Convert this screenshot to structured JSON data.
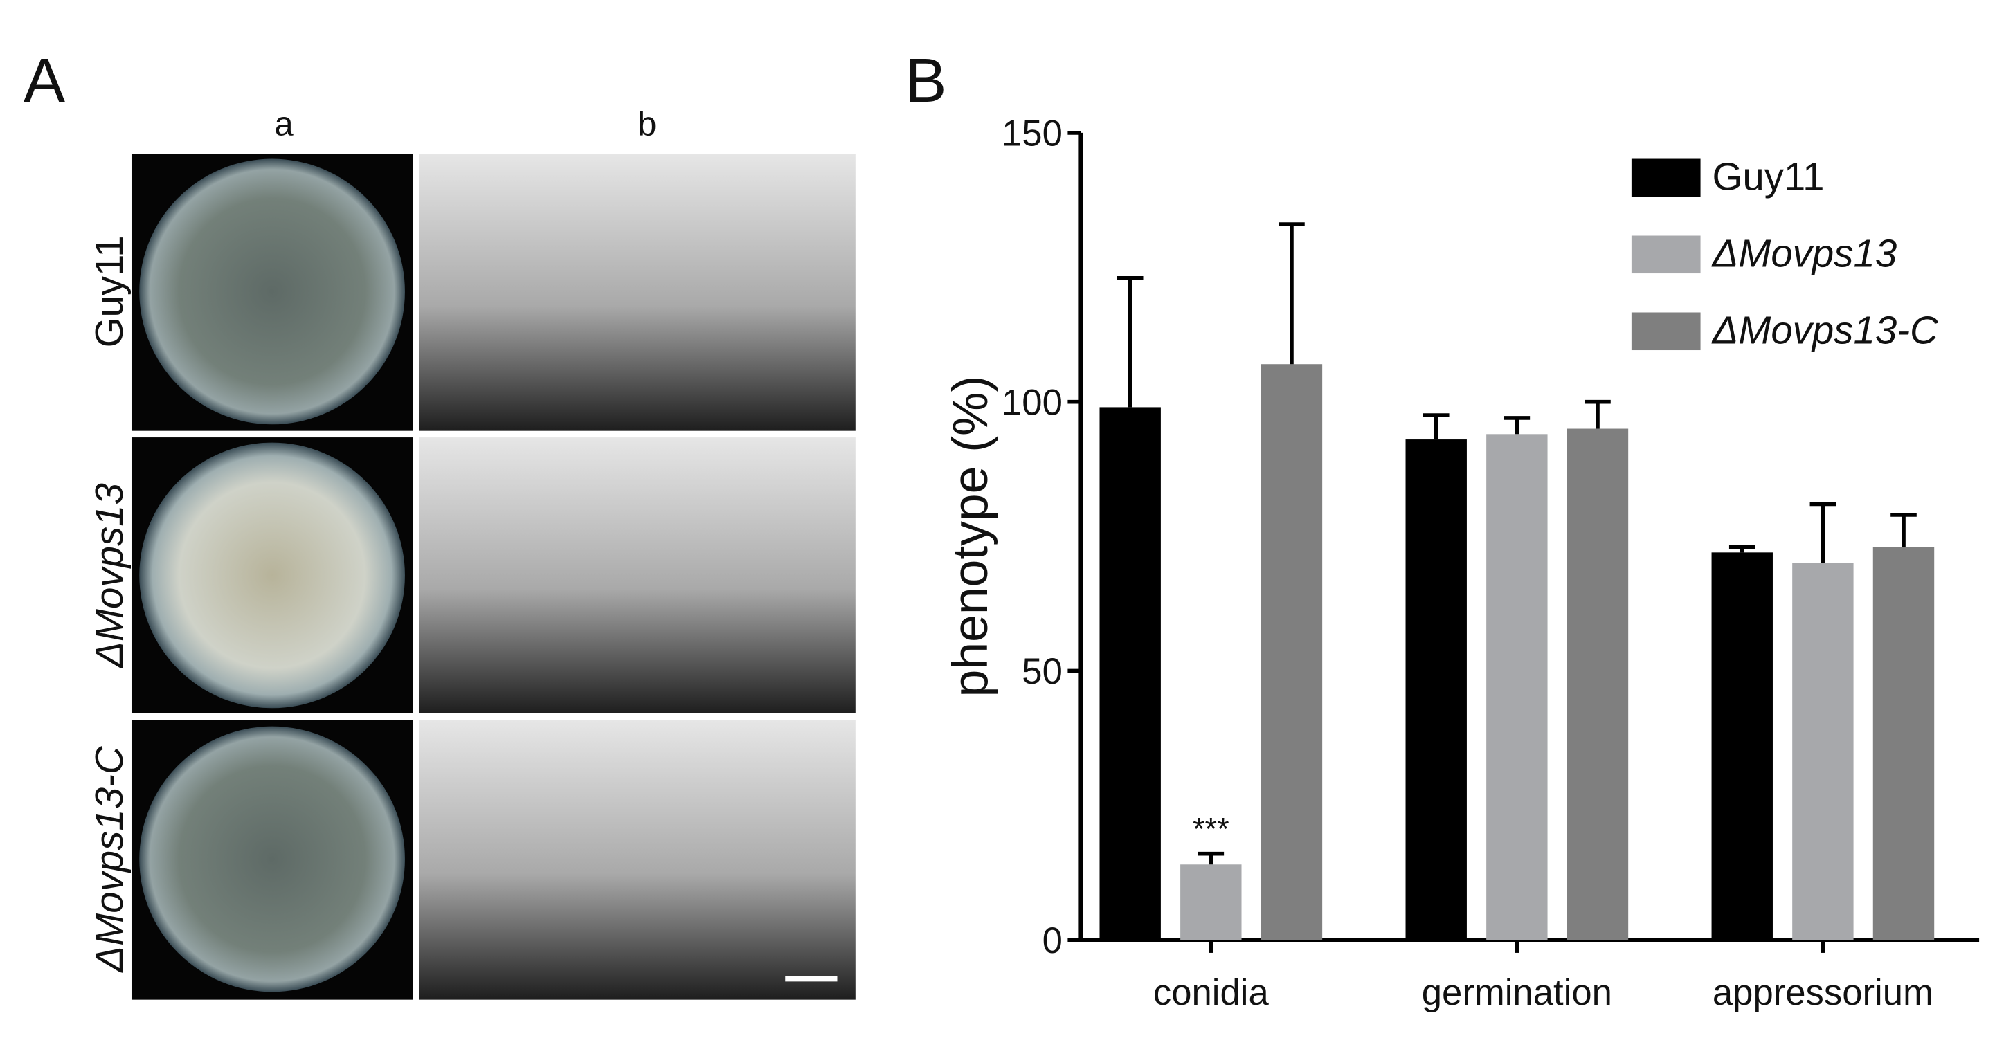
{
  "panel_a": {
    "label": "A",
    "columns": [
      "a",
      "b"
    ],
    "rows": [
      "Guy11",
      "ΔMovps13",
      "ΔMovps13-C"
    ]
  },
  "chart_data": {
    "type": "bar",
    "panel_label": "B",
    "ylabel": "phenotype (%)",
    "categories": [
      "conidia",
      "germination",
      "appressorium"
    ],
    "series": [
      {
        "name": "Guy11",
        "color": "#000000",
        "values": [
          99,
          93,
          72
        ],
        "errors": [
          24,
          4.5,
          1
        ]
      },
      {
        "name": "ΔMovps13",
        "color": "#a7a8ab",
        "values": [
          14,
          94,
          70
        ],
        "errors": [
          2,
          3,
          11
        ]
      },
      {
        "name": "ΔMovps13-C",
        "color": "#7f7f7f",
        "values": [
          107,
          95,
          73
        ],
        "errors": [
          26,
          5,
          6
        ]
      }
    ],
    "annotations": [
      "***"
    ],
    "ylim": [
      0,
      150
    ],
    "yticks": [
      0,
      50,
      100,
      150
    ],
    "legend": "upper right"
  }
}
